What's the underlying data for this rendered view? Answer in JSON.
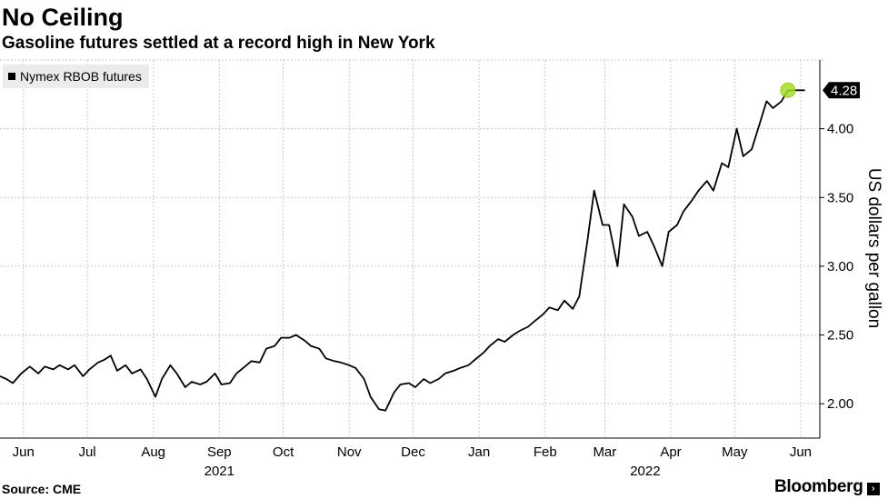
{
  "header": {
    "title": "No Ceiling",
    "subtitle": "Gasoline futures settled at a record high in New York"
  },
  "footer": {
    "source": "Source: CME",
    "brand": "Bloomberg",
    "brand_mark": "›"
  },
  "colors": {
    "line": "#000000",
    "grid": "#c8c8c8",
    "highlight": "#a6dc28",
    "callout_bg": "#000000"
  },
  "chart_data": {
    "type": "line",
    "title": "No Ceiling",
    "subtitle": "Gasoline futures settled at a record high in New York",
    "ylabel": "US dollars per gallon",
    "ylim": [
      1.75,
      4.5
    ],
    "y_ticks": [
      {
        "value": 2.0,
        "label": "2.00"
      },
      {
        "value": 2.5,
        "label": "2.50"
      },
      {
        "value": 3.0,
        "label": "3.00"
      },
      {
        "value": 3.5,
        "label": "3.50"
      },
      {
        "value": 4.0,
        "label": "4.00"
      }
    ],
    "y_axis_position": "right",
    "x_ticks": [
      {
        "date": "2021-06-01",
        "label": "Jun"
      },
      {
        "date": "2021-07-01",
        "label": "Jul"
      },
      {
        "date": "2021-08-01",
        "label": "Aug"
      },
      {
        "date": "2021-09-01",
        "label": "Sep"
      },
      {
        "date": "2021-10-01",
        "label": "Oct"
      },
      {
        "date": "2021-11-01",
        "label": "Nov"
      },
      {
        "date": "2021-12-01",
        "label": "Dec"
      },
      {
        "date": "2022-01-01",
        "label": "Jan"
      },
      {
        "date": "2022-02-01",
        "label": "Feb"
      },
      {
        "date": "2022-03-01",
        "label": "Mar"
      },
      {
        "date": "2022-04-01",
        "label": "Apr"
      },
      {
        "date": "2022-05-01",
        "label": "May"
      },
      {
        "date": "2022-06-01",
        "label": "Jun"
      }
    ],
    "year_labels": [
      {
        "date": "2021-09-01",
        "label": "2021"
      },
      {
        "date": "2022-03-20",
        "label": "2022"
      }
    ],
    "grid": true,
    "legend": {
      "position": "top-left",
      "entries": [
        "Nymex RBOB futures"
      ]
    },
    "series": [
      {
        "name": "Nymex RBOB futures",
        "x": [
          "2021-05-21",
          "2021-05-24",
          "2021-05-27",
          "2021-05-31",
          "2021-06-04",
          "2021-06-08",
          "2021-06-11",
          "2021-06-15",
          "2021-06-18",
          "2021-06-22",
          "2021-06-25",
          "2021-06-29",
          "2021-07-02",
          "2021-07-06",
          "2021-07-09",
          "2021-07-12",
          "2021-07-15",
          "2021-07-19",
          "2021-07-22",
          "2021-07-26",
          "2021-07-29",
          "2021-08-02",
          "2021-08-05",
          "2021-08-09",
          "2021-08-12",
          "2021-08-16",
          "2021-08-19",
          "2021-08-23",
          "2021-08-26",
          "2021-08-30",
          "2021-09-02",
          "2021-09-06",
          "2021-09-09",
          "2021-09-13",
          "2021-09-16",
          "2021-09-20",
          "2021-09-23",
          "2021-09-27",
          "2021-09-30",
          "2021-10-04",
          "2021-10-07",
          "2021-10-11",
          "2021-10-14",
          "2021-10-18",
          "2021-10-21",
          "2021-10-25",
          "2021-10-28",
          "2021-11-01",
          "2021-11-04",
          "2021-11-08",
          "2021-11-11",
          "2021-11-15",
          "2021-11-18",
          "2021-11-22",
          "2021-11-25",
          "2021-11-29",
          "2021-12-02",
          "2021-12-06",
          "2021-12-09",
          "2021-12-13",
          "2021-12-16",
          "2021-12-20",
          "2021-12-23",
          "2021-12-27",
          "2021-12-30",
          "2022-01-03",
          "2022-01-06",
          "2022-01-10",
          "2022-01-13",
          "2022-01-17",
          "2022-01-20",
          "2022-01-24",
          "2022-01-27",
          "2022-01-31",
          "2022-02-03",
          "2022-02-07",
          "2022-02-10",
          "2022-02-14",
          "2022-02-17",
          "2022-02-21",
          "2022-02-24",
          "2022-02-28",
          "2022-03-03",
          "2022-03-07",
          "2022-03-10",
          "2022-03-14",
          "2022-03-17",
          "2022-03-21",
          "2022-03-24",
          "2022-03-28",
          "2022-03-31",
          "2022-04-04",
          "2022-04-07",
          "2022-04-11",
          "2022-04-14",
          "2022-04-18",
          "2022-04-21",
          "2022-04-25",
          "2022-04-28",
          "2022-05-02",
          "2022-05-05",
          "2022-05-09",
          "2022-05-12",
          "2022-05-16",
          "2022-05-19",
          "2022-05-23",
          "2022-05-26",
          "2022-05-30",
          "2022-06-03"
        ],
        "values": [
          2.2,
          2.18,
          2.15,
          2.22,
          2.27,
          2.22,
          2.27,
          2.25,
          2.28,
          2.25,
          2.28,
          2.2,
          2.25,
          2.3,
          2.32,
          2.35,
          2.24,
          2.28,
          2.22,
          2.25,
          2.18,
          2.05,
          2.18,
          2.28,
          2.22,
          2.12,
          2.16,
          2.14,
          2.16,
          2.22,
          2.14,
          2.15,
          2.22,
          2.27,
          2.31,
          2.3,
          2.4,
          2.42,
          2.48,
          2.48,
          2.5,
          2.46,
          2.42,
          2.4,
          2.33,
          2.31,
          2.3,
          2.28,
          2.26,
          2.18,
          2.05,
          1.96,
          1.95,
          2.08,
          2.14,
          2.15,
          2.12,
          2.18,
          2.15,
          2.18,
          2.22,
          2.24,
          2.26,
          2.28,
          2.32,
          2.37,
          2.42,
          2.47,
          2.45,
          2.5,
          2.53,
          2.56,
          2.6,
          2.65,
          2.7,
          2.68,
          2.75,
          2.69,
          2.78,
          3.2,
          3.55,
          3.3,
          3.3,
          3.0,
          3.45,
          3.36,
          3.22,
          3.25,
          3.15,
          3.0,
          3.25,
          3.3,
          3.4,
          3.48,
          3.55,
          3.62,
          3.55,
          3.75,
          3.72,
          4.0,
          3.8,
          3.85,
          4.0,
          4.2,
          4.15,
          4.2,
          4.28,
          4.28,
          4.28
        ]
      }
    ],
    "last_value": {
      "value": 4.28,
      "label": "4.28"
    }
  }
}
